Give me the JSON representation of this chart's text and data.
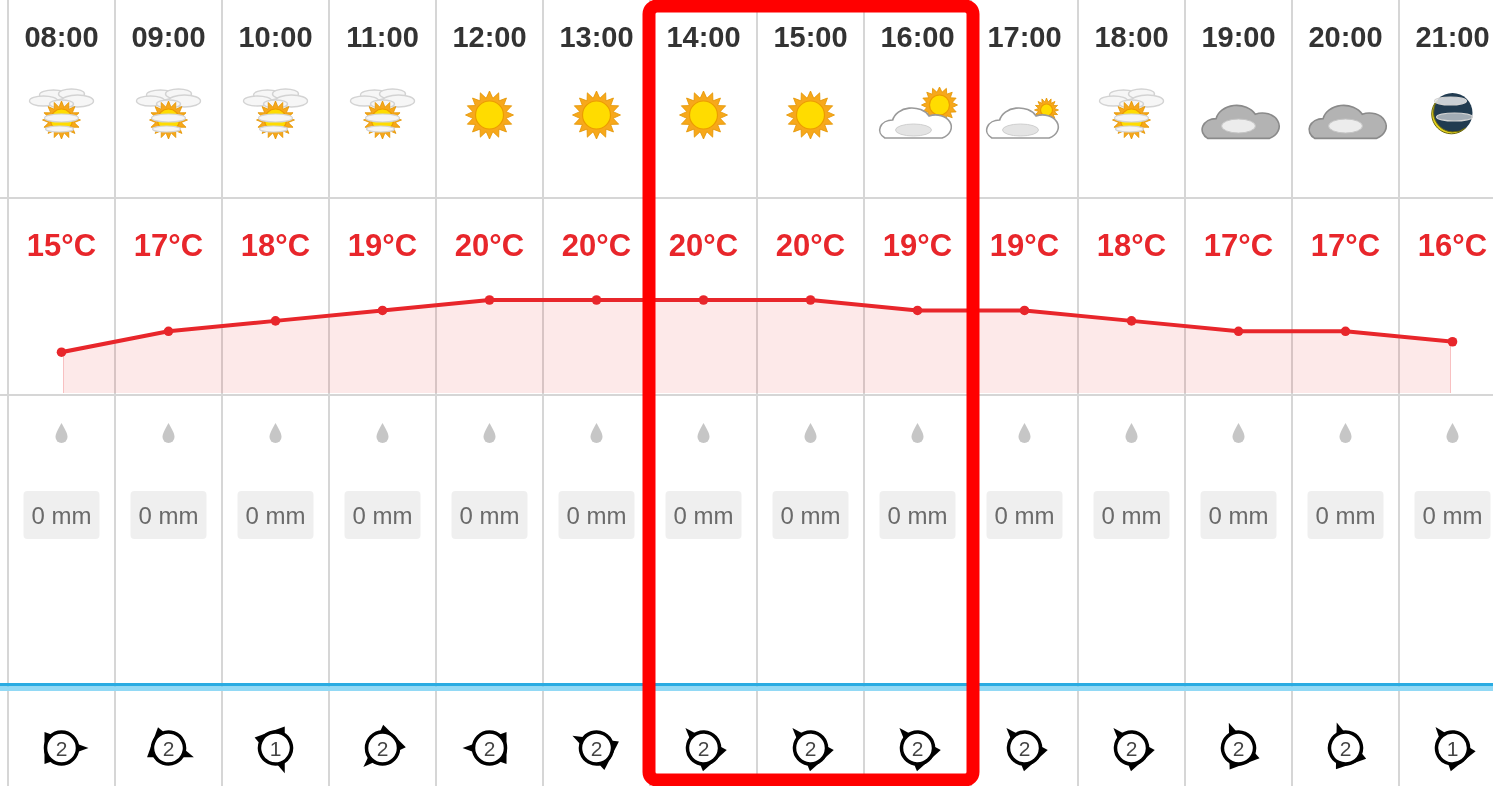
{
  "chart_data": [
    {
      "type": "area",
      "categories": [
        "08:00",
        "09:00",
        "10:00",
        "11:00",
        "12:00",
        "13:00",
        "14:00",
        "15:00",
        "16:00",
        "17:00",
        "18:00",
        "19:00",
        "20:00",
        "21:00"
      ],
      "tick_labels": "x",
      "color": "#e8262b",
      "values": [
        15,
        17,
        18,
        19,
        20,
        20,
        20,
        20,
        19,
        19,
        18,
        17,
        17,
        16
      ],
      "value_labels": [
        "15°C",
        "17°C",
        "18°C",
        "19°C",
        "20°C",
        "20°C",
        "20°C",
        "20°C",
        "19°C",
        "19°C",
        "18°C",
        "17°C",
        "17°C",
        "16°C"
      ],
      "marker": "circle"
    },
    {
      "type": "other",
      "values": [
        0,
        0,
        0,
        0,
        0,
        0,
        0,
        0,
        0,
        0,
        0,
        0,
        0,
        0
      ],
      "value_labels": [
        "0 mm",
        "0 mm",
        "0 mm",
        "0 mm",
        "0 mm",
        "0 mm",
        "0 mm",
        "0 mm",
        "0 mm",
        "0 mm",
        "0 mm",
        "0 mm",
        "0 mm",
        "0 mm"
      ]
    },
    {
      "type": "other",
      "color": "#000000",
      "values": [
        2,
        2,
        1,
        2,
        2,
        2,
        2,
        2,
        2,
        2,
        2,
        2,
        2,
        1
      ],
      "data_labels": true
    }
  ]
}
